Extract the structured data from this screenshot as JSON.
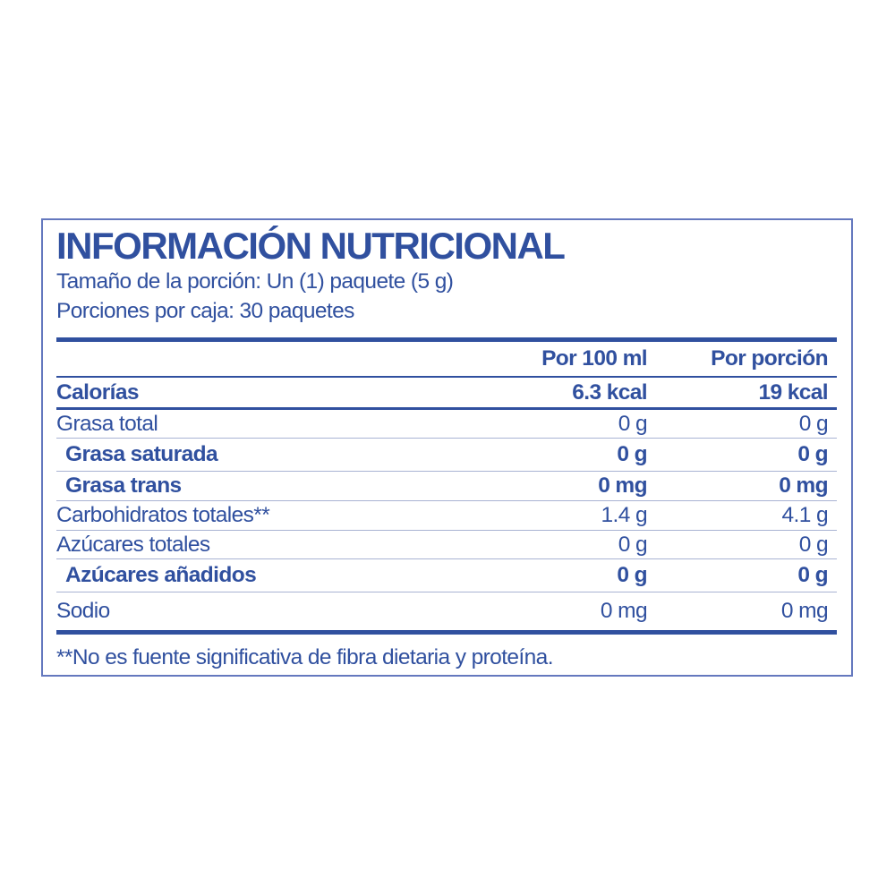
{
  "label": {
    "title": "INFORMACIÓN NUTRICIONAL",
    "serving_size": "Tamaño de la porción: Un (1) paquete (5 g)",
    "servings_per_box": "Porciones por caja: 30 paquetes",
    "footnote": "**No es fuente significativa de fibra dietaria y proteína."
  },
  "table": {
    "columns": [
      "Por 100 ml",
      "Por porción"
    ],
    "rows": [
      {
        "label": "Calorías",
        "per_100ml": "6.3 kcal",
        "per_serving": "19 kcal",
        "bold": true,
        "indent": false
      },
      {
        "label": "Grasa total",
        "per_100ml": "0 g",
        "per_serving": "0 g",
        "bold": false,
        "indent": false
      },
      {
        "label": "Grasa saturada",
        "per_100ml": "0 g",
        "per_serving": "0 g",
        "bold": true,
        "indent": true
      },
      {
        "label": "Grasa trans",
        "per_100ml": "0 mg",
        "per_serving": "0 mg",
        "bold": true,
        "indent": true
      },
      {
        "label": "Carbohidratos totales**",
        "per_100ml": "1.4 g",
        "per_serving": "4.1 g",
        "bold": false,
        "indent": false
      },
      {
        "label": "Azúcares totales",
        "per_100ml": "0 g",
        "per_serving": "0 g",
        "bold": false,
        "indent": false
      },
      {
        "label": "Azúcares añadidos",
        "per_100ml": "0 g",
        "per_serving": "0 g",
        "bold": true,
        "indent": true
      },
      {
        "label": "Sodio",
        "per_100ml": "0 mg",
        "per_serving": "0 mg",
        "bold": false,
        "indent": false
      }
    ]
  },
  "colors": {
    "primary_blue": "#30509f",
    "light_separator": "#a9b3d3",
    "border_blue": "#6478be",
    "background": "#ffffff"
  }
}
